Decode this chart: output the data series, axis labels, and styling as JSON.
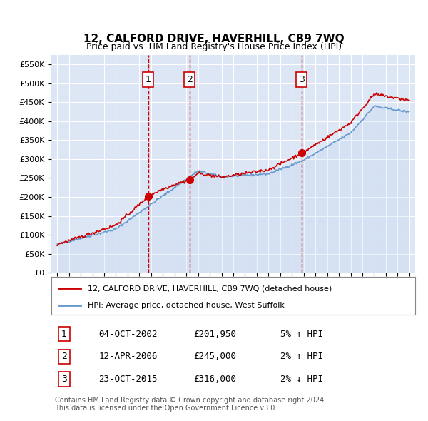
{
  "title": "12, CALFORD DRIVE, HAVERHILL, CB9 7WQ",
  "subtitle": "Price paid vs. HM Land Registry's House Price Index (HPI)",
  "ylabel": "",
  "ylim": [
    0,
    575000
  ],
  "yticks": [
    0,
    50000,
    100000,
    150000,
    200000,
    250000,
    300000,
    350000,
    400000,
    450000,
    500000,
    550000
  ],
  "background_color": "#ffffff",
  "plot_bg_color": "#dce6f5",
  "grid_color": "#ffffff",
  "purchases": [
    {
      "date_num": 2002.75,
      "price": 201950,
      "label": "1"
    },
    {
      "date_num": 2006.28,
      "price": 245000,
      "label": "2"
    },
    {
      "date_num": 2015.81,
      "price": 316000,
      "label": "3"
    }
  ],
  "purchase_color": "#cc0000",
  "hpi_color": "#6699cc",
  "hpi_fill_color": "#c5d8f0",
  "legend_items": [
    {
      "label": "12, CALFORD DRIVE, HAVERHILL, CB9 7WQ (detached house)",
      "color": "#cc0000"
    },
    {
      "label": "HPI: Average price, detached house, West Suffolk",
      "color": "#6699cc"
    }
  ],
  "table_rows": [
    {
      "num": "1",
      "date": "04-OCT-2002",
      "price": "£201,950",
      "hpi": "5% ↑ HPI"
    },
    {
      "num": "2",
      "date": "12-APR-2006",
      "price": "£245,000",
      "hpi": "2% ↑ HPI"
    },
    {
      "num": "3",
      "date": "23-OCT-2015",
      "price": "£316,000",
      "hpi": "2% ↓ HPI"
    }
  ],
  "footer": "Contains HM Land Registry data © Crown copyright and database right 2024.\nThis data is licensed under the Open Government Licence v3.0.",
  "vline_dates": [
    2002.75,
    2006.28,
    2015.81
  ],
  "vline_color": "#cc0000"
}
